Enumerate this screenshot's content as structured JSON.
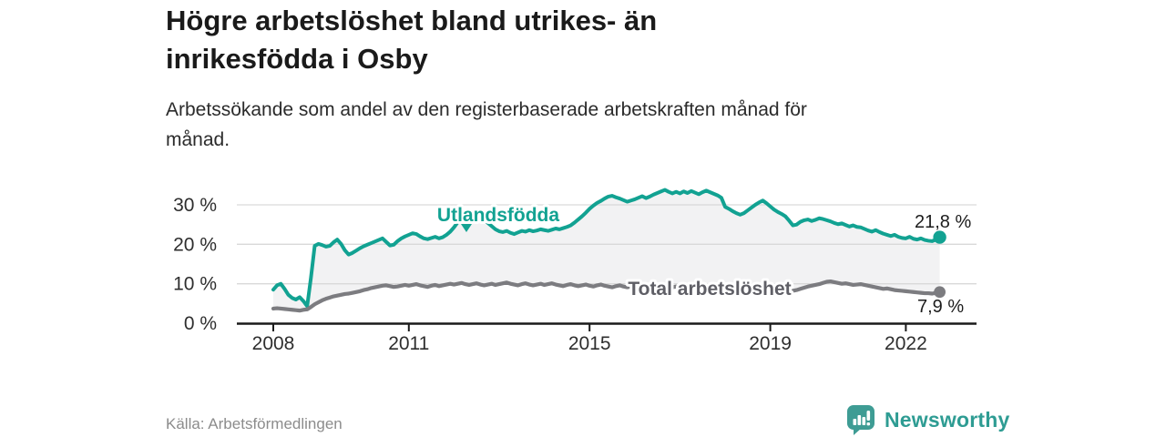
{
  "page": {
    "title_line1": "Högre arbetslöshet bland utrikes- än",
    "title_line2": "inrikesfödda i Osby",
    "subtitle_line1": "Arbetssökande som andel av den registerbaserade arbetskraften månad för",
    "subtitle_line2": "månad.",
    "source": "Källa: Arbetsförmedlingen",
    "brand": "Newsworthy"
  },
  "colors": {
    "accent_teal": "#12a292",
    "logo_teal": "#3e9c94",
    "line_gray": "#7c7c80",
    "label_gray": "#5f5f66",
    "area_fill": "#f2f2f3",
    "grid": "#d9d9d9",
    "axis": "#1a1a1a",
    "tick_text": "#2e2e2e"
  },
  "chart_data": {
    "type": "line",
    "unit": "%",
    "x_interval": "monthly",
    "x_start_year": 2008,
    "x_end": "2022-10",
    "x_ticks": [
      2008,
      2011,
      2015,
      2019,
      2022
    ],
    "y_ticks": [
      {
        "value": 0,
        "label": "0 %"
      },
      {
        "value": 10,
        "label": "10 %"
      },
      {
        "value": 20,
        "label": "20 %"
      },
      {
        "value": 30,
        "label": "30 %"
      }
    ],
    "ylim": [
      0,
      35
    ],
    "grid": "horizontal",
    "legend_position": "inline-labels",
    "area_between_series": true,
    "series": [
      {
        "name": "Utlandsfödda",
        "color": "#12a292",
        "end_value": 21.8,
        "end_label": "21,8 %",
        "values": [
          8.5,
          9.6,
          10.0,
          8.7,
          7.2,
          6.4,
          6.0,
          6.6,
          5.6,
          4.3,
          11.5,
          19.6,
          20.1,
          19.8,
          19.4,
          19.6,
          20.5,
          21.2,
          20.1,
          18.5,
          17.4,
          17.8,
          18.4,
          19.0,
          19.5,
          19.9,
          20.3,
          20.7,
          21.1,
          21.5,
          20.6,
          19.7,
          19.9,
          20.8,
          21.5,
          22.0,
          22.4,
          22.8,
          22.6,
          22.0,
          21.5,
          21.3,
          21.6,
          21.9,
          21.5,
          21.8,
          22.4,
          23.2,
          24.3,
          25.6,
          26.8,
          27.7,
          28.2,
          28.4,
          27.9,
          27.2,
          26.3,
          25.4,
          24.6,
          23.8,
          23.3,
          23.1,
          23.4,
          22.9,
          22.6,
          23.0,
          23.4,
          23.2,
          23.6,
          23.3,
          23.5,
          23.8,
          23.6,
          23.4,
          23.7,
          24.0,
          23.8,
          24.1,
          24.4,
          24.8,
          25.5,
          26.3,
          27.1,
          28.0,
          29.0,
          29.8,
          30.5,
          31.0,
          31.6,
          32.1,
          32.3,
          31.9,
          31.6,
          31.2,
          30.8,
          31.1,
          31.4,
          31.8,
          32.2,
          31.7,
          32.1,
          32.6,
          33.0,
          33.4,
          33.8,
          33.3,
          32.9,
          33.3,
          32.9,
          33.4,
          33.0,
          33.5,
          33.1,
          32.7,
          33.2,
          33.6,
          33.2,
          32.8,
          32.4,
          31.8,
          29.5,
          29.0,
          28.4,
          27.9,
          27.5,
          27.9,
          28.6,
          29.3,
          30.0,
          30.6,
          31.1,
          30.4,
          29.6,
          28.8,
          28.2,
          27.7,
          27.1,
          26.0,
          24.8,
          25.0,
          25.7,
          26.1,
          26.3,
          25.9,
          26.2,
          26.6,
          26.4,
          26.1,
          25.8,
          25.4,
          25.1,
          25.3,
          24.9,
          24.5,
          24.8,
          24.4,
          24.3,
          23.9,
          23.5,
          23.2,
          23.6,
          23.1,
          22.7,
          22.4,
          22.1,
          22.4,
          21.9,
          21.6,
          21.5,
          21.9,
          21.4,
          21.2,
          21.5,
          21.1,
          20.9,
          20.8,
          21.2,
          21.8
        ]
      },
      {
        "name": "Total arbetslöshet",
        "color": "#7c7c80",
        "end_value": 7.9,
        "end_label": "7,9 %",
        "values": [
          3.7,
          3.8,
          3.7,
          3.6,
          3.5,
          3.4,
          3.3,
          3.2,
          3.4,
          3.5,
          4.1,
          4.8,
          5.3,
          5.8,
          6.2,
          6.5,
          6.8,
          7.0,
          7.2,
          7.4,
          7.5,
          7.7,
          7.9,
          8.1,
          8.4,
          8.6,
          8.9,
          9.1,
          9.3,
          9.5,
          9.6,
          9.4,
          9.2,
          9.3,
          9.5,
          9.7,
          9.5,
          9.7,
          9.9,
          9.6,
          9.4,
          9.2,
          9.5,
          9.7,
          9.4,
          9.6,
          9.8,
          10.0,
          9.8,
          10.0,
          10.2,
          9.9,
          9.7,
          9.9,
          10.1,
          9.8,
          9.6,
          9.8,
          10.0,
          9.7,
          9.9,
          10.1,
          10.3,
          10.0,
          9.8,
          9.6,
          9.9,
          10.1,
          9.8,
          9.6,
          9.8,
          10.0,
          9.7,
          9.9,
          10.1,
          9.8,
          9.6,
          9.4,
          9.7,
          9.9,
          9.6,
          9.4,
          9.6,
          9.8,
          9.5,
          9.3,
          9.6,
          9.8,
          9.5,
          9.3,
          9.1,
          9.4,
          9.6,
          9.3,
          9.1,
          9.3,
          9.5,
          9.7,
          9.4,
          9.2,
          9.0,
          9.3,
          9.5,
          9.2,
          9.0,
          8.8,
          9.1,
          9.3,
          9.0,
          8.8,
          9.1,
          9.3,
          9.0,
          8.8,
          8.6,
          8.9,
          9.1,
          8.8,
          8.6,
          8.8,
          8.6,
          8.4,
          8.7,
          8.5,
          8.3,
          8.1,
          8.4,
          8.6,
          8.3,
          8.1,
          8.3,
          8.5,
          8.3,
          8.1,
          8.4,
          8.2,
          8.0,
          7.9,
          8.2,
          8.4,
          8.7,
          9.0,
          9.3,
          9.5,
          9.7,
          9.9,
          10.2,
          10.5,
          10.6,
          10.4,
          10.2,
          10.0,
          10.1,
          9.9,
          9.7,
          9.8,
          9.9,
          9.7,
          9.5,
          9.3,
          9.1,
          8.9,
          8.7,
          8.8,
          8.6,
          8.4,
          8.3,
          8.2,
          8.1,
          8.0,
          7.9,
          7.8,
          7.7,
          7.6,
          7.6,
          7.5,
          7.7,
          7.9
        ]
      }
    ]
  }
}
